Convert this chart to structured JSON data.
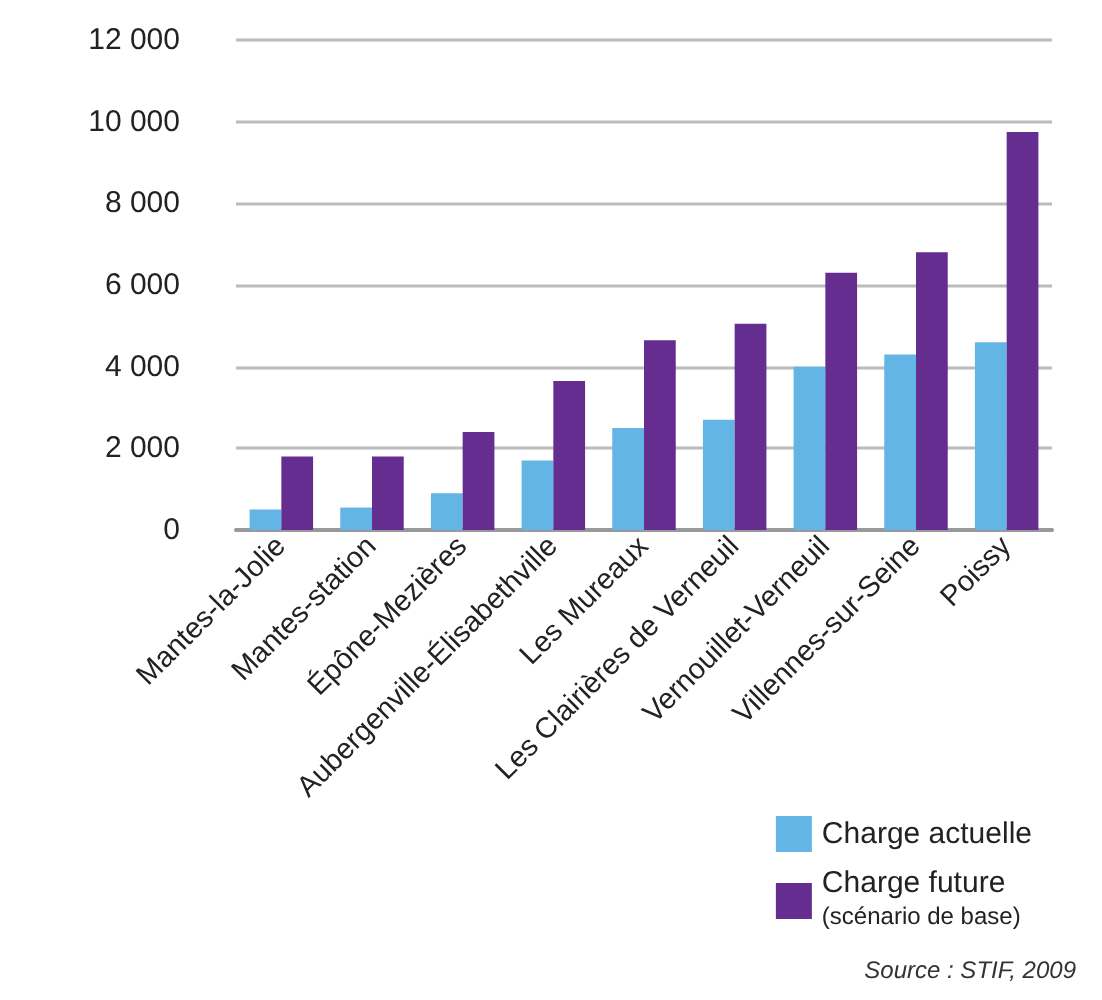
{
  "chart_data": {
    "type": "bar",
    "categories": [
      "Mantes-la-Jolie",
      "Mantes-station",
      "Épône-Mezières",
      "Aubergenville-Élisabethville",
      "Les Mureaux",
      "Les Clairières de Verneuil",
      "Vernouillet-Verneuil",
      "Villennes-sur-Seine",
      "Poissy"
    ],
    "series": [
      {
        "name": "Charge actuelle",
        "color": "#63b5e5",
        "values": [
          500,
          550,
          900,
          1700,
          2500,
          2700,
          4000,
          4300,
          4600
        ]
      },
      {
        "name": "Charge future\n(scénario de base)",
        "color": "#652d8f",
        "values": [
          1800,
          1800,
          2400,
          3650,
          4650,
          5050,
          6300,
          6800,
          9750
        ]
      }
    ],
    "ylim": [
      0,
      12000
    ],
    "yticks": [
      0,
      {
        "value": 2000,
        "label": "2 000"
      },
      {
        "value": 4000,
        "label": "4 000"
      },
      {
        "value": 6000,
        "label": "6 000"
      },
      {
        "value": 8000,
        "label": "8 000"
      },
      {
        "value": 10000,
        "label": "10 000"
      },
      {
        "value": 12000,
        "label": "12 000"
      }
    ],
    "grid": "y",
    "legend": "bottom right",
    "annotations": [
      "Source : STIF, 2009"
    ]
  }
}
